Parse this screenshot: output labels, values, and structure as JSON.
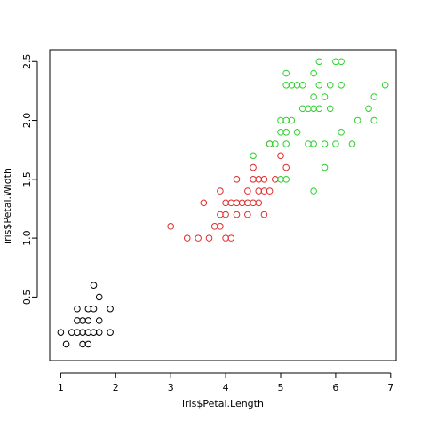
{
  "chart_data": {
    "type": "scatter",
    "title": "",
    "xlabel": "iris$Petal.Length",
    "ylabel": "iris$Petal.Width",
    "xlim": [
      0.8,
      7.1
    ],
    "ylim": [
      -0.04,
      2.6
    ],
    "x_ticks": [
      1,
      2,
      3,
      4,
      5,
      6,
      7
    ],
    "y_ticks": [
      0.5,
      1.0,
      1.5,
      2.0,
      2.5
    ],
    "x_tick_labels": [
      "1",
      "2",
      "3",
      "4",
      "5",
      "6",
      "7"
    ],
    "y_tick_labels": [
      "0.5",
      "1.0",
      "1.5",
      "2.0",
      "2.5"
    ],
    "grid": false,
    "legend": "none",
    "marker": "open-circle",
    "series": [
      {
        "color": "#000000",
        "points": [
          [
            1.0,
            0.2
          ],
          [
            1.1,
            0.1
          ],
          [
            1.2,
            0.2
          ],
          [
            1.3,
            0.2
          ],
          [
            1.3,
            0.3
          ],
          [
            1.3,
            0.4
          ],
          [
            1.4,
            0.1
          ],
          [
            1.4,
            0.2
          ],
          [
            1.4,
            0.3
          ],
          [
            1.5,
            0.1
          ],
          [
            1.5,
            0.2
          ],
          [
            1.5,
            0.3
          ],
          [
            1.5,
            0.4
          ],
          [
            1.6,
            0.2
          ],
          [
            1.6,
            0.4
          ],
          [
            1.6,
            0.6
          ],
          [
            1.7,
            0.2
          ],
          [
            1.7,
            0.3
          ],
          [
            1.7,
            0.5
          ],
          [
            1.9,
            0.2
          ],
          [
            1.9,
            0.4
          ]
        ]
      },
      {
        "color": "#df2d2d",
        "points": [
          [
            3.0,
            1.1
          ],
          [
            3.3,
            1.0
          ],
          [
            3.5,
            1.0
          ],
          [
            3.6,
            1.3
          ],
          [
            3.7,
            1.0
          ],
          [
            3.8,
            1.1
          ],
          [
            3.9,
            1.1
          ],
          [
            3.9,
            1.2
          ],
          [
            3.9,
            1.4
          ],
          [
            4.0,
            1.0
          ],
          [
            4.0,
            1.2
          ],
          [
            4.0,
            1.3
          ],
          [
            4.1,
            1.0
          ],
          [
            4.1,
            1.3
          ],
          [
            4.2,
            1.2
          ],
          [
            4.2,
            1.3
          ],
          [
            4.2,
            1.5
          ],
          [
            4.3,
            1.3
          ],
          [
            4.4,
            1.2
          ],
          [
            4.4,
            1.3
          ],
          [
            4.4,
            1.4
          ],
          [
            4.5,
            1.3
          ],
          [
            4.5,
            1.5
          ],
          [
            4.5,
            1.6
          ],
          [
            4.6,
            1.3
          ],
          [
            4.6,
            1.4
          ],
          [
            4.6,
            1.5
          ],
          [
            4.7,
            1.2
          ],
          [
            4.7,
            1.4
          ],
          [
            4.7,
            1.5
          ],
          [
            4.8,
            1.4
          ],
          [
            4.8,
            1.8
          ],
          [
            4.9,
            1.5
          ],
          [
            5.0,
            1.7
          ],
          [
            5.1,
            1.6
          ]
        ]
      },
      {
        "color": "#2ed12e",
        "points": [
          [
            4.5,
            1.7
          ],
          [
            4.8,
            1.8
          ],
          [
            4.9,
            1.8
          ],
          [
            5.0,
            1.5
          ],
          [
            5.0,
            1.9
          ],
          [
            5.0,
            2.0
          ],
          [
            5.1,
            1.5
          ],
          [
            5.1,
            1.8
          ],
          [
            5.1,
            1.9
          ],
          [
            5.1,
            2.0
          ],
          [
            5.1,
            2.3
          ],
          [
            5.1,
            2.4
          ],
          [
            5.2,
            2.0
          ],
          [
            5.2,
            2.3
          ],
          [
            5.3,
            1.9
          ],
          [
            5.3,
            2.3
          ],
          [
            5.4,
            2.1
          ],
          [
            5.4,
            2.3
          ],
          [
            5.5,
            1.8
          ],
          [
            5.5,
            2.1
          ],
          [
            5.6,
            1.4
          ],
          [
            5.6,
            1.8
          ],
          [
            5.6,
            2.1
          ],
          [
            5.6,
            2.2
          ],
          [
            5.6,
            2.4
          ],
          [
            5.7,
            2.1
          ],
          [
            5.7,
            2.3
          ],
          [
            5.7,
            2.5
          ],
          [
            5.8,
            1.6
          ],
          [
            5.8,
            1.8
          ],
          [
            5.8,
            2.2
          ],
          [
            5.9,
            2.1
          ],
          [
            5.9,
            2.3
          ],
          [
            6.0,
            1.8
          ],
          [
            6.0,
            2.5
          ],
          [
            6.1,
            1.9
          ],
          [
            6.1,
            2.3
          ],
          [
            6.1,
            2.5
          ],
          [
            6.3,
            1.8
          ],
          [
            6.4,
            2.0
          ],
          [
            6.6,
            2.1
          ],
          [
            6.7,
            2.0
          ],
          [
            6.7,
            2.2
          ],
          [
            6.9,
            2.3
          ]
        ]
      }
    ]
  }
}
